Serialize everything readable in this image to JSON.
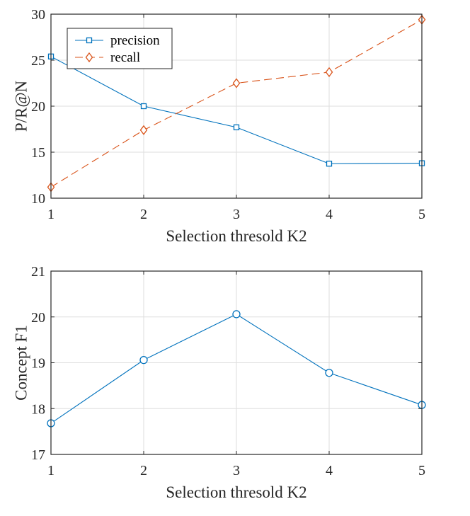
{
  "chart_data": [
    {
      "type": "line",
      "title": "",
      "xlabel": "Selection thresold K2",
      "ylabel": "P/R@N",
      "x": [
        1,
        2,
        3,
        4,
        5
      ],
      "xlim": [
        1,
        5
      ],
      "ylim": [
        10,
        30
      ],
      "xticks": [
        "1",
        "2",
        "3",
        "4",
        "5"
      ],
      "yticks": [
        "10",
        "15",
        "20",
        "25",
        "30"
      ],
      "grid": true,
      "legend_position": "top-left",
      "series": [
        {
          "name": "precision",
          "values": [
            25.4,
            20.0,
            17.7,
            13.75,
            13.8
          ],
          "color": "#0072BD",
          "marker": "square",
          "line": "solid"
        },
        {
          "name": "recall",
          "values": [
            11.2,
            17.4,
            22.5,
            23.7,
            29.4
          ],
          "color": "#D95319",
          "marker": "diamond",
          "line": "dashed"
        }
      ]
    },
    {
      "type": "line",
      "title": "",
      "xlabel": "Selection thresold K2",
      "ylabel": "Concept F1",
      "x": [
        1,
        2,
        3,
        4,
        5
      ],
      "xlim": [
        1,
        5
      ],
      "ylim": [
        17,
        21
      ],
      "xticks": [
        "1",
        "2",
        "3",
        "4",
        "5"
      ],
      "yticks": [
        "17",
        "18",
        "19",
        "20",
        "21"
      ],
      "grid": true,
      "series": [
        {
          "name": "Concept F1",
          "values": [
            17.68,
            19.06,
            20.06,
            18.78,
            18.08
          ],
          "color": "#0072BD",
          "marker": "circle",
          "line": "solid"
        }
      ]
    }
  ]
}
